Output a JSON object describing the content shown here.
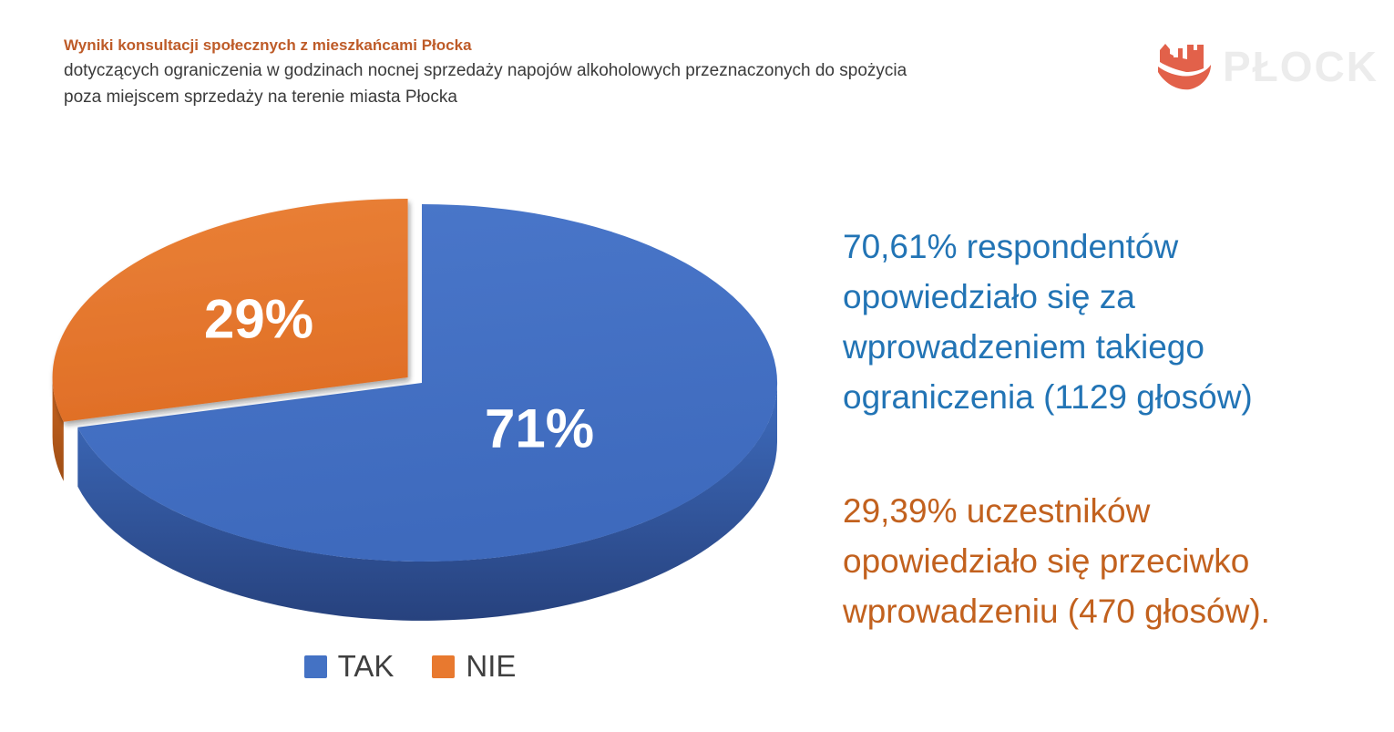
{
  "header": {
    "title": "Wyniki konsultacji społecznych z mieszkańcami Płocka",
    "title_color": "#BE5B28",
    "subtitle_lines": [
      "dotyczących ograniczenia w godzinach nocnej sprzedaży napojów alkoholowych przeznaczonych do spożycia",
      "poza miejscem sprzedaży na terenie miasta Płocka"
    ]
  },
  "logo": {
    "text": "PŁOCK",
    "icon_color": "#E2614A",
    "text_color": "#ECECEC"
  },
  "chart_data": {
    "type": "pie",
    "style": "3d-exploded",
    "labels": [
      "TAK",
      "NIE"
    ],
    "values": [
      71,
      29
    ],
    "value_labels": [
      "71%",
      "29%"
    ],
    "exploded_slice": "NIE",
    "legend_position": "bottom",
    "slice_styles": [
      {
        "top": "#4A77CA",
        "top2": "#3E6ABD",
        "wall": "#3E6CBE",
        "wall2": "#27427E"
      },
      {
        "top": "#EA8137",
        "top2": "#E06F27",
        "wall": "#C96420",
        "wall2": "#9E4D14"
      }
    ]
  },
  "legend": {
    "items": [
      {
        "label": "TAK",
        "color": "#4472C4"
      },
      {
        "label": "NIE",
        "color": "#E8792F"
      }
    ]
  },
  "annotations": {
    "yes_text": "70,61% respondentów opowiedziało się za wprowadzeniem takiego ograniczenia (1129 głosów)",
    "yes_color": "#2274B5",
    "no_text": "29,39% uczestników opowiedziało się przeciwko wprowadzeniu (470 głosów).",
    "no_color": "#C2611E"
  }
}
